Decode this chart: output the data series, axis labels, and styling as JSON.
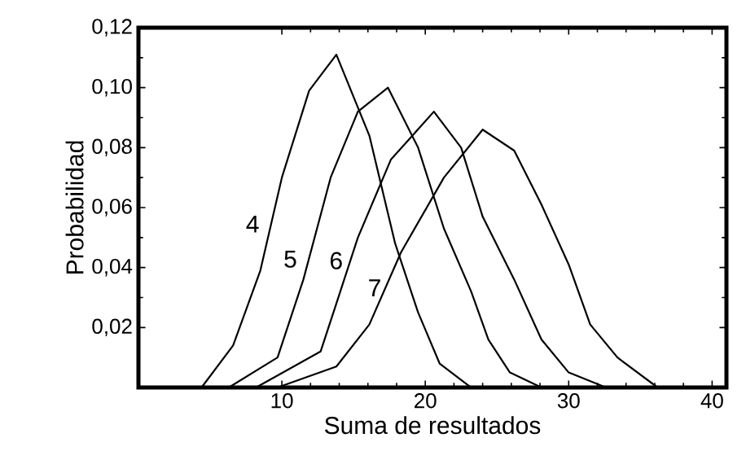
{
  "chart_data": {
    "type": "line",
    "xlabel": "Suma de resultados",
    "ylabel": "Probabilidad",
    "xlim": [
      0,
      41
    ],
    "ylim": [
      0,
      0.12
    ],
    "xticks": [
      10,
      20,
      30,
      40
    ],
    "yticks": [
      {
        "value": 0.02,
        "label": "0,02"
      },
      {
        "value": 0.04,
        "label": "0,04"
      },
      {
        "value": 0.06,
        "label": "0,06"
      },
      {
        "value": 0.08,
        "label": "0,08"
      },
      {
        "value": 0.1,
        "label": "0,10"
      },
      {
        "value": 0.12,
        "label": "0,12"
      }
    ],
    "grid": false,
    "legend": false,
    "marker": "none",
    "line_style": "solid",
    "series": [
      {
        "name": "4",
        "color": "#000000",
        "x": [
          4.4,
          6.6,
          8.5,
          10.0,
          11.9,
          13.8,
          16.1,
          17.9,
          19.5,
          21.0,
          23.2
        ],
        "values": [
          0,
          0.014,
          0.039,
          0.07,
          0.099,
          0.111,
          0.084,
          0.048,
          0.025,
          0.008,
          0
        ]
      },
      {
        "name": "5",
        "color": "#000000",
        "x": [
          6.3,
          9.7,
          11.5,
          13.4,
          15.3,
          17.4,
          19.5,
          21.3,
          23.2,
          24.4,
          25.9,
          28.1
        ],
        "values": [
          0,
          0.01,
          0.036,
          0.07,
          0.092,
          0.1,
          0.08,
          0.053,
          0.032,
          0.016,
          0.005,
          0
        ]
      },
      {
        "name": "6",
        "color": "#000000",
        "x": [
          8.2,
          12.7,
          13.8,
          15.3,
          17.6,
          20.6,
          22.5,
          24.0,
          26.2,
          28.1,
          30.0,
          32.6
        ],
        "values": [
          0,
          0.012,
          0.028,
          0.05,
          0.076,
          0.092,
          0.08,
          0.057,
          0.036,
          0.016,
          0.005,
          0
        ]
      },
      {
        "name": "7",
        "color": "#000000",
        "x": [
          9.7,
          13.8,
          16.1,
          18.3,
          21.3,
          24.0,
          26.2,
          28.1,
          30.0,
          31.5,
          33.4,
          36.2
        ],
        "values": [
          0,
          0.007,
          0.021,
          0.045,
          0.07,
          0.086,
          0.079,
          0.061,
          0.041,
          0.021,
          0.01,
          0
        ]
      }
    ]
  }
}
